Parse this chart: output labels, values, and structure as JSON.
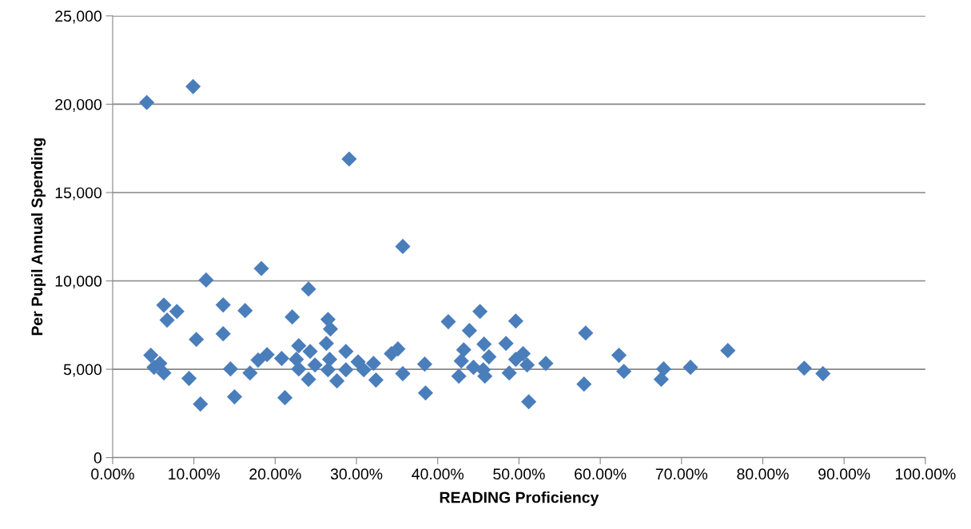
{
  "chart_data": {
    "type": "scatter",
    "xlabel": "READING Proficiency",
    "ylabel": "Per Pupil Annual Spending",
    "marker": "diamond",
    "grid": "y",
    "legend": false,
    "xlim": [
      0,
      100
    ],
    "xticks": [
      {
        "value": 0,
        "label": "0.00%"
      },
      {
        "value": 10,
        "label": "10.00%"
      },
      {
        "value": 20,
        "label": "20.00%"
      },
      {
        "value": 30,
        "label": "30.00%"
      },
      {
        "value": 40,
        "label": "40.00%"
      },
      {
        "value": 50,
        "label": "50.00%"
      },
      {
        "value": 60,
        "label": "60.00%"
      },
      {
        "value": 70,
        "label": "70.00%"
      },
      {
        "value": 80,
        "label": "80.00%"
      },
      {
        "value": 90,
        "label": "90.00%"
      },
      {
        "value": 100,
        "label": "100.00%"
      }
    ],
    "ylim": [
      0,
      25000
    ],
    "yticks": [
      {
        "value": 0,
        "label": "0"
      },
      {
        "value": 5000,
        "label": "5,000"
      },
      {
        "value": 10000,
        "label": "10,000"
      },
      {
        "value": 15000,
        "label": "15,000"
      },
      {
        "value": 20000,
        "label": "20,000"
      },
      {
        "value": 25000,
        "label": "25,000"
      }
    ],
    "series": [
      {
        "color": "#4a7ebb",
        "x": [
          4.2,
          9.9,
          29.1,
          35.7,
          18.3,
          11.5,
          6.3,
          7.9,
          6.7,
          13.6,
          16.3,
          22.1,
          24.1,
          10.3,
          13.6,
          4.7,
          5.8,
          5.1,
          6.3,
          9.4,
          10.8,
          14.5,
          15.0,
          16.9,
          17.9,
          19.0,
          20.8,
          21.2,
          22.9,
          22.6,
          22.9,
          24.3,
          24.1,
          24.9,
          26.5,
          26.8,
          26.3,
          26.7,
          26.5,
          27.6,
          28.7,
          28.7,
          30.2,
          30.9,
          32.1,
          32.4,
          34.3,
          35.1,
          35.7,
          38.4,
          38.5,
          41.3,
          43.2,
          42.9,
          42.6,
          43.9,
          45.2,
          45.7,
          46.3,
          44.4,
          45.6,
          45.8,
          48.4,
          48.8,
          49.6,
          49.6,
          50.5,
          51.0,
          51.2,
          53.3,
          58.2,
          58.0,
          62.3,
          62.9,
          67.5,
          67.8,
          71.1,
          75.7,
          85.1,
          87.4
        ],
        "values": [
          20100,
          21000,
          16900,
          11950,
          10700,
          10050,
          8630,
          8270,
          7780,
          8640,
          8320,
          7960,
          9540,
          6690,
          7010,
          5790,
          5330,
          5110,
          4790,
          4480,
          3030,
          5020,
          3440,
          4790,
          5520,
          5830,
          5610,
          3390,
          6330,
          5560,
          5020,
          6010,
          4430,
          5240,
          7820,
          7280,
          6460,
          5560,
          4970,
          4340,
          6010,
          4970,
          5420,
          4970,
          5330,
          4390,
          5880,
          6150,
          4750,
          5290,
          3660,
          7690,
          6100,
          5470,
          4610,
          7190,
          8270,
          6420,
          5700,
          5110,
          4970,
          4610,
          6460,
          4790,
          7730,
          5560,
          5880,
          5240,
          3160,
          5330,
          7050,
          4160,
          5790,
          4880,
          4430,
          5020,
          5110,
          6060,
          5060,
          4750
        ]
      }
    ]
  }
}
